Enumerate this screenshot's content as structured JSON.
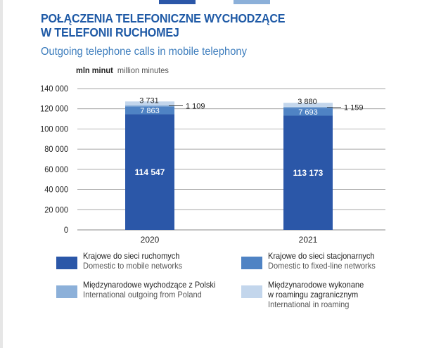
{
  "header": {
    "title_pl_line1": "POŁĄCZENIA TELEFONICZNE WYCHODZĄCE",
    "title_pl_line2": "W TELEFONII RUCHOMEJ",
    "title_en": "Outgoing telephone calls in mobile telephony",
    "unit_pl": "mln minut",
    "unit_en": "million minutes"
  },
  "colors": {
    "domestic_mobile": "#2b57a8",
    "domestic_fixed": "#4f83c4",
    "intl_outgoing": "#8cb0d9",
    "intl_roaming": "#c3d6ec",
    "grid": "#8a8a8a",
    "title": "#1f5aa6"
  },
  "chart_data": {
    "type": "bar",
    "stacked": true,
    "categories": [
      "2020",
      "2021"
    ],
    "series": [
      {
        "name": "Krajowe do sieci ruchomych / Domestic to mobile networks",
        "values": [
          114547,
          113173
        ]
      },
      {
        "name": "Krajowe do sieci stacjonarnych / Domestic to fixed-line networks",
        "values": [
          7863,
          7693
        ]
      },
      {
        "name": "Międzynarodowe wychodzące z Polski / International outgoing from Poland",
        "values": [
          1109,
          1159
        ]
      },
      {
        "name": "Międzynarodowe wykonane w roamingu zagranicznym / International in roaming",
        "values": [
          3731,
          3880
        ]
      }
    ],
    "labels": {
      "2020": {
        "domestic_mobile": "114 547",
        "domestic_fixed": "7 863",
        "intl_outgoing": "1 109",
        "intl_roaming": "3 731"
      },
      "2021": {
        "domestic_mobile": "113 173",
        "domestic_fixed": "7 693",
        "intl_outgoing": "1 159",
        "intl_roaming": "3 880"
      }
    },
    "y_ticks": [
      0,
      20000,
      40000,
      60000,
      80000,
      100000,
      120000,
      140000
    ],
    "y_tick_labels": [
      "0",
      "20 000",
      "40 000",
      "60 000",
      "80 000",
      "100 000",
      "120 000",
      "140 000"
    ],
    "ylim": [
      0,
      140000
    ],
    "ylabel": "mln minut / million minutes",
    "xlabel": "",
    "grid": true
  },
  "legend": [
    {
      "pl": "Krajowe do sieci ruchomych",
      "en": "Domestic to mobile networks"
    },
    {
      "pl": "Krajowe do sieci stacjonarnych",
      "en": "Domestic to fixed-line networks"
    },
    {
      "pl": "Międzynarodowe wychodzące z Polski",
      "en": "International outgoing from Poland"
    },
    {
      "pl_line1": "Międzynarodowe wykonane",
      "pl_line2": "w roamingu zagranicznym",
      "en": "International in roaming"
    }
  ]
}
